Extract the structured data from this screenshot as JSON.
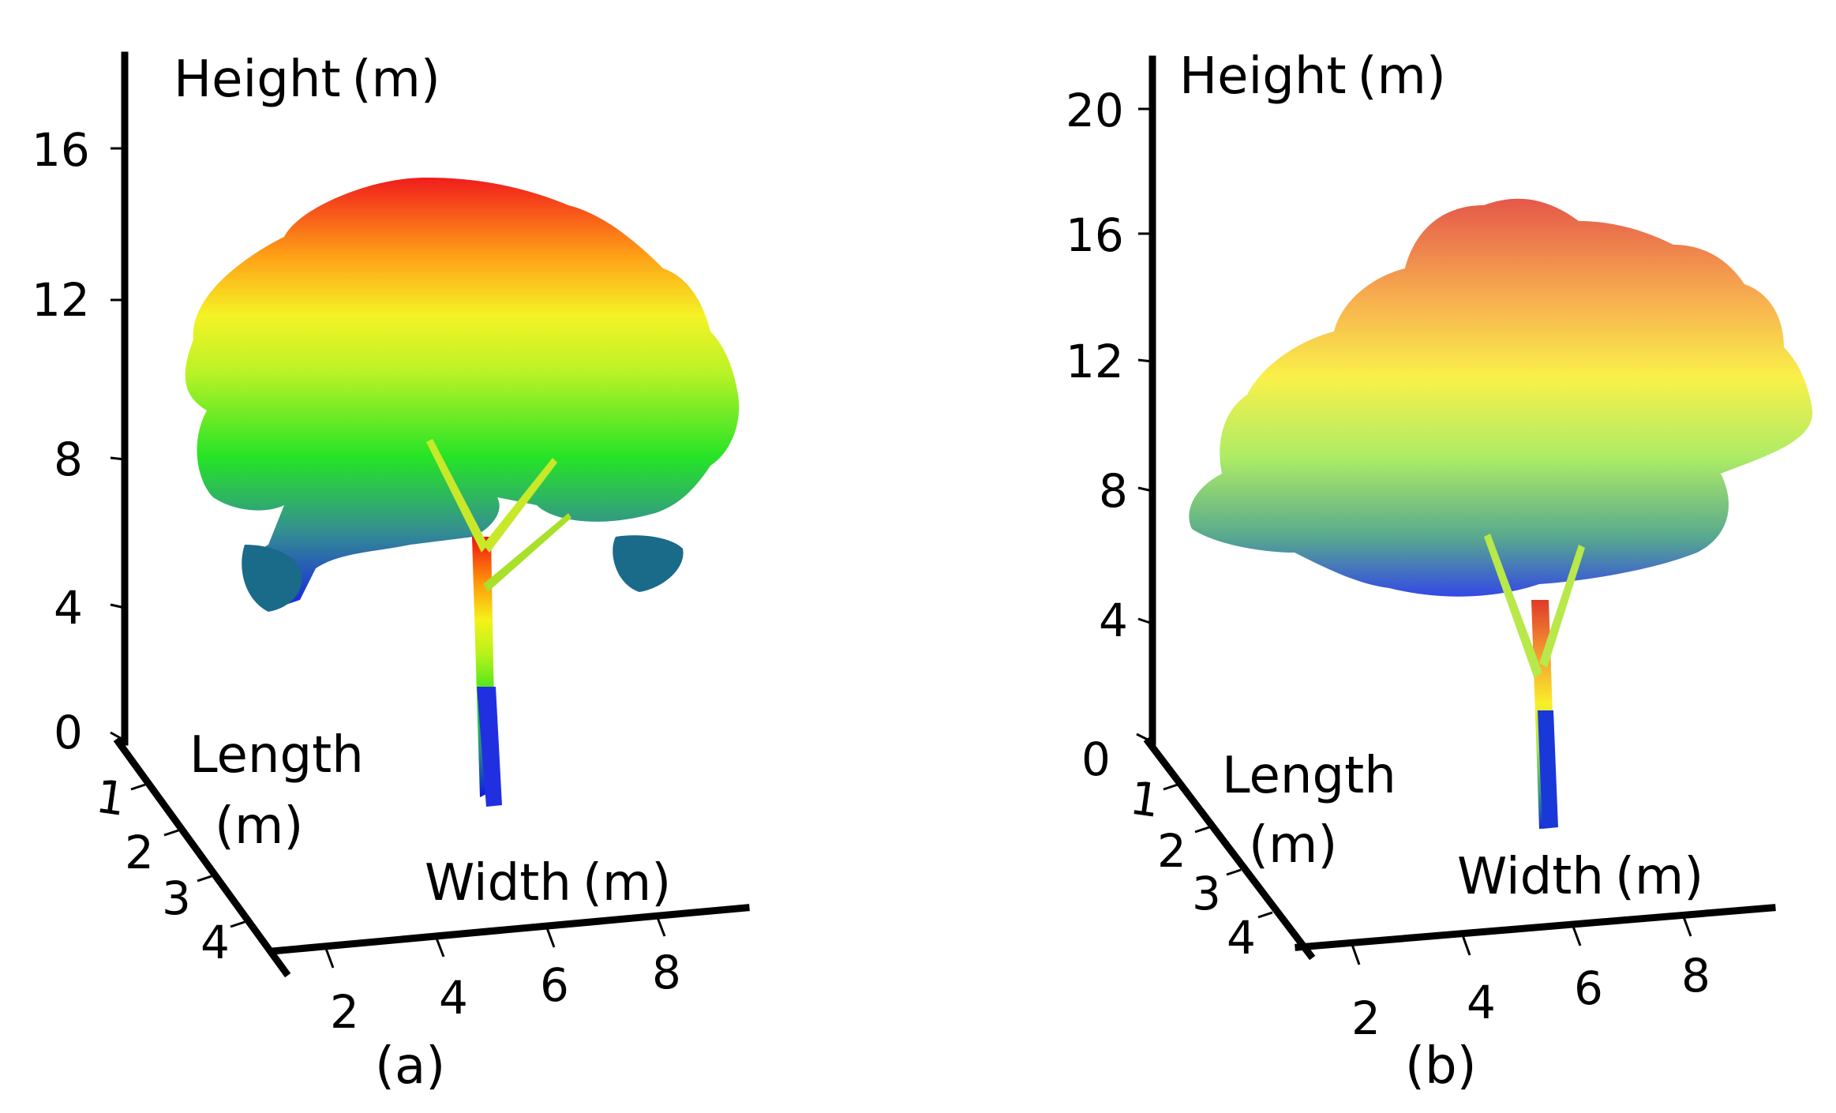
{
  "chart_data": [
    {
      "type": "scatter",
      "caption": "(a)",
      "axes": {
        "height": {
          "label": "Height",
          "unit": "(m)",
          "ticks": [
            "0",
            "4",
            "8",
            "12",
            "16"
          ]
        },
        "length": {
          "label": "Length",
          "unit": "(m)",
          "ticks": [
            "1",
            "2",
            "3",
            "4"
          ]
        },
        "width": {
          "label": "Width",
          "unit": "(m)",
          "ticks": [
            "2",
            "4",
            "6",
            "8"
          ]
        }
      },
      "point_cloud": {
        "colormap": "jet (blue low → red high)",
        "tree_height_max": 16
      }
    },
    {
      "type": "scatter",
      "caption": "(b)",
      "axes": {
        "height": {
          "label": "Height",
          "unit": "(m)",
          "ticks": [
            "0",
            "4",
            "8",
            "12",
            "16",
            "20"
          ]
        },
        "length": {
          "label": "Length",
          "unit": "(m)",
          "ticks": [
            "1",
            "2",
            "3",
            "4"
          ]
        },
        "width": {
          "label": "Width",
          "unit": "(m)",
          "ticks": [
            "2",
            "4",
            "6",
            "8"
          ]
        }
      },
      "point_cloud": {
        "colormap": "jet (blue low → red high)",
        "tree_height_max": 18
      }
    }
  ]
}
